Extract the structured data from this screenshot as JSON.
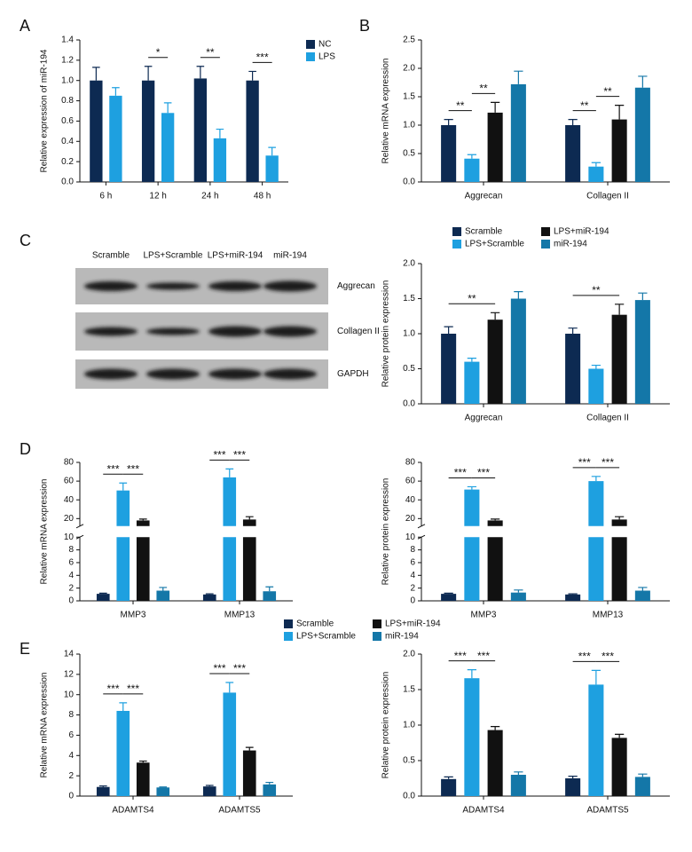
{
  "panel_labels": [
    "A",
    "B",
    "C",
    "D",
    "E"
  ],
  "blot": {
    "lanes": [
      "Scramble",
      "LPS+Scramble",
      "LPS+miR-194",
      "miR-194"
    ],
    "rows": [
      "Aggrecan",
      "Collagen II",
      "GAPDH"
    ]
  },
  "chart_data": [
    {
      "type": "bar",
      "ylabel": "Relative expression of miR-194",
      "categories": [
        "6 h",
        "12 h",
        "24 h",
        "48 h"
      ],
      "series": [
        {
          "name": "NC",
          "color": "#0d2a52",
          "values": [
            1.0,
            1.0,
            1.02,
            1.0
          ],
          "errors": [
            0.13,
            0.14,
            0.12,
            0.09
          ]
        },
        {
          "name": "LPS",
          "color": "#1ea0e0",
          "values": [
            0.85,
            0.68,
            0.43,
            0.26
          ],
          "errors": [
            0.08,
            0.1,
            0.09,
            0.08
          ]
        }
      ],
      "ylim": [
        0,
        1.4
      ],
      "yticks": [
        {
          "value": 0,
          "label": "0.0"
        },
        {
          "value": 0.2,
          "label": "0.2"
        },
        {
          "value": 0.4,
          "label": "0.4"
        },
        {
          "value": 0.6,
          "label": "0.6"
        },
        {
          "value": 0.8,
          "label": "0.8"
        },
        {
          "value": 1.0,
          "label": "1.0"
        },
        {
          "value": 1.2,
          "label": "1.2"
        },
        {
          "value": 1.4,
          "label": "1.4"
        }
      ],
      "annotations": [
        {
          "text": "*",
          "category": 1,
          "series": [
            0,
            1
          ]
        },
        {
          "text": "**",
          "category": 2,
          "series": [
            0,
            1
          ]
        },
        {
          "text": "***",
          "category": 3,
          "series": [
            0,
            1
          ]
        }
      ],
      "legend": "right"
    },
    {
      "type": "bar",
      "ylabel": "Relative mRNA expression",
      "categories": [
        "Aggrecan",
        "Collagen II"
      ],
      "series": [
        {
          "color": "#0d2a52",
          "values": [
            1.0,
            1.0
          ],
          "errors": [
            0.1,
            0.1
          ]
        },
        {
          "color": "#1ea0e0",
          "values": [
            0.41,
            0.27
          ],
          "errors": [
            0.07,
            0.07
          ]
        },
        {
          "color": "#111111",
          "values": [
            1.22,
            1.1
          ],
          "errors": [
            0.18,
            0.25
          ]
        },
        {
          "color": "#1477a8",
          "values": [
            1.72,
            1.66
          ],
          "errors": [
            0.23,
            0.2
          ]
        }
      ],
      "ylim": [
        0,
        2.5
      ],
      "yticks": [
        {
          "value": 0,
          "label": "0.0"
        },
        {
          "value": 0.5,
          "label": "0.5"
        },
        {
          "value": 1.0,
          "label": "1.0"
        },
        {
          "value": 1.5,
          "label": "1.5"
        },
        {
          "value": 2.0,
          "label": "2.0"
        },
        {
          "value": 2.5,
          "label": "2.5"
        }
      ],
      "annotations": [
        {
          "text": "**",
          "category": 0,
          "series": [
            0,
            1
          ]
        },
        {
          "text": "**",
          "category": 0,
          "series": [
            1,
            2
          ]
        },
        {
          "text": "**",
          "category": 1,
          "series": [
            0,
            1
          ]
        },
        {
          "text": "**",
          "category": 1,
          "series": [
            1,
            2
          ]
        }
      ]
    },
    {
      "type": "bar",
      "ylabel": "Relative protein expression",
      "categories": [
        "Aggrecan",
        "Collagen II"
      ],
      "series": [
        {
          "name": "Scramble",
          "color": "#0d2a52",
          "values": [
            1.0,
            1.0
          ],
          "errors": [
            0.1,
            0.08
          ]
        },
        {
          "name": "LPS+Scramble",
          "color": "#1ea0e0",
          "values": [
            0.6,
            0.5
          ],
          "errors": [
            0.05,
            0.05
          ]
        },
        {
          "name": "LPS+miR-194",
          "color": "#111111",
          "values": [
            1.2,
            1.27
          ],
          "errors": [
            0.1,
            0.15
          ]
        },
        {
          "name": "miR-194",
          "color": "#1477a8",
          "values": [
            1.5,
            1.48
          ],
          "errors": [
            0.1,
            0.1
          ]
        }
      ],
      "ylim": [
        0,
        2.0
      ],
      "yticks": [
        {
          "value": 0,
          "label": "0.0"
        },
        {
          "value": 0.5,
          "label": "0.5"
        },
        {
          "value": 1.0,
          "label": "1.0"
        },
        {
          "value": 1.5,
          "label": "1.5"
        },
        {
          "value": 2.0,
          "label": "2.0"
        }
      ],
      "annotations": [
        {
          "text": "**",
          "category": 0,
          "series": [
            0,
            2
          ]
        },
        {
          "text": "**",
          "category": 1,
          "series": [
            0,
            2
          ]
        }
      ],
      "legend": "top"
    },
    {
      "type": "bar",
      "ylabel": "Relative mRNA expression",
      "categories": [
        "MMP3",
        "MMP13"
      ],
      "series": [
        {
          "name": "Scramble",
          "color": "#0d2a52",
          "values": [
            1.1,
            1.0
          ],
          "errors": [
            0.1,
            0.1
          ]
        },
        {
          "name": "LPS+Scramble",
          "color": "#1ea0e0",
          "values": [
            50,
            64
          ],
          "errors": [
            8,
            9
          ]
        },
        {
          "name": "LPS+miR-194",
          "color": "#111111",
          "values": [
            18,
            19
          ],
          "errors": [
            1.5,
            3
          ]
        },
        {
          "name": "miR-194",
          "color": "#1477a8",
          "values": [
            1.6,
            1.5
          ],
          "errors": [
            0.5,
            0.7
          ]
        }
      ],
      "ylim": [
        0,
        80
      ],
      "ybreak": [
        10,
        12
      ],
      "yticks": [
        0,
        2,
        4,
        6,
        8,
        10,
        20,
        40,
        60,
        80
      ],
      "annotations": [
        {
          "text": "***",
          "category": 0,
          "series": [
            0,
            1
          ]
        },
        {
          "text": "***",
          "category": 0,
          "series": [
            1,
            2
          ]
        },
        {
          "text": "***",
          "category": 1,
          "series": [
            0,
            1
          ]
        },
        {
          "text": "***",
          "category": 1,
          "series": [
            1,
            2
          ]
        }
      ],
      "legend": "bottom"
    },
    {
      "type": "bar",
      "ylabel": "Relative protein expression",
      "categories": [
        "MMP3",
        "MMP13"
      ],
      "series": [
        {
          "color": "#0d2a52",
          "values": [
            1.1,
            1.0
          ],
          "errors": [
            0.1,
            0.1
          ]
        },
        {
          "color": "#1ea0e0",
          "values": [
            51,
            60
          ],
          "errors": [
            3,
            5
          ]
        },
        {
          "color": "#111111",
          "values": [
            18,
            19
          ],
          "errors": [
            1.5,
            3
          ]
        },
        {
          "color": "#1477a8",
          "values": [
            1.3,
            1.6
          ],
          "errors": [
            0.4,
            0.5
          ]
        }
      ],
      "ylim": [
        0,
        80
      ],
      "ybreak": [
        10,
        12
      ],
      "yticks": [
        0,
        2,
        4,
        6,
        8,
        10,
        20,
        40,
        60,
        80
      ],
      "annotations": [
        {
          "text": "***",
          "category": 0,
          "series": [
            0,
            1
          ]
        },
        {
          "text": "***",
          "category": 0,
          "series": [
            1,
            2
          ]
        },
        {
          "text": "***",
          "category": 1,
          "series": [
            0,
            1
          ]
        },
        {
          "text": "***",
          "category": 1,
          "series": [
            1,
            2
          ]
        }
      ]
    },
    {
      "type": "bar",
      "ylabel": "Relative mRNA expression",
      "categories": [
        "ADAMTS4",
        "ADAMTS5"
      ],
      "series": [
        {
          "color": "#0d2a52",
          "values": [
            0.9,
            0.95
          ],
          "errors": [
            0.1,
            0.1
          ]
        },
        {
          "color": "#1ea0e0",
          "values": [
            8.4,
            10.2
          ],
          "errors": [
            0.8,
            1.0
          ]
        },
        {
          "color": "#111111",
          "values": [
            3.3,
            4.5
          ],
          "errors": [
            0.15,
            0.3
          ]
        },
        {
          "color": "#1477a8",
          "values": [
            0.85,
            1.15
          ],
          "errors": [
            0.05,
            0.2
          ]
        }
      ],
      "ylim": [
        0,
        14
      ],
      "yticks": [
        0,
        2,
        4,
        6,
        8,
        10,
        12,
        14
      ],
      "annotations": [
        {
          "text": "***",
          "category": 0,
          "series": [
            0,
            1
          ]
        },
        {
          "text": "***",
          "category": 0,
          "series": [
            1,
            2
          ]
        },
        {
          "text": "***",
          "category": 1,
          "series": [
            0,
            1
          ]
        },
        {
          "text": "***",
          "category": 1,
          "series": [
            1,
            2
          ]
        }
      ]
    },
    {
      "type": "bar",
      "ylabel": "Relative protein expression",
      "categories": [
        "ADAMTS4",
        "ADAMTS5"
      ],
      "series": [
        {
          "color": "#0d2a52",
          "values": [
            0.24,
            0.25
          ],
          "errors": [
            0.03,
            0.03
          ]
        },
        {
          "color": "#1ea0e0",
          "values": [
            1.66,
            1.57
          ],
          "errors": [
            0.12,
            0.2
          ]
        },
        {
          "color": "#111111",
          "values": [
            0.93,
            0.82
          ],
          "errors": [
            0.05,
            0.05
          ]
        },
        {
          "color": "#1477a8",
          "values": [
            0.3,
            0.27
          ],
          "errors": [
            0.04,
            0.04
          ]
        }
      ],
      "ylim": [
        0,
        2.0
      ],
      "yticks": [
        {
          "value": 0,
          "label": "0.0"
        },
        {
          "value": 0.5,
          "label": "0.5"
        },
        {
          "value": 1.0,
          "label": "1.0"
        },
        {
          "value": 1.5,
          "label": "1.5"
        },
        {
          "value": 2.0,
          "label": "2.0"
        }
      ],
      "annotations": [
        {
          "text": "***",
          "category": 0,
          "series": [
            0,
            1
          ]
        },
        {
          "text": "***",
          "category": 0,
          "series": [
            1,
            2
          ]
        },
        {
          "text": "***",
          "category": 1,
          "series": [
            0,
            1
          ]
        },
        {
          "text": "***",
          "category": 1,
          "series": [
            1,
            2
          ]
        }
      ]
    }
  ]
}
